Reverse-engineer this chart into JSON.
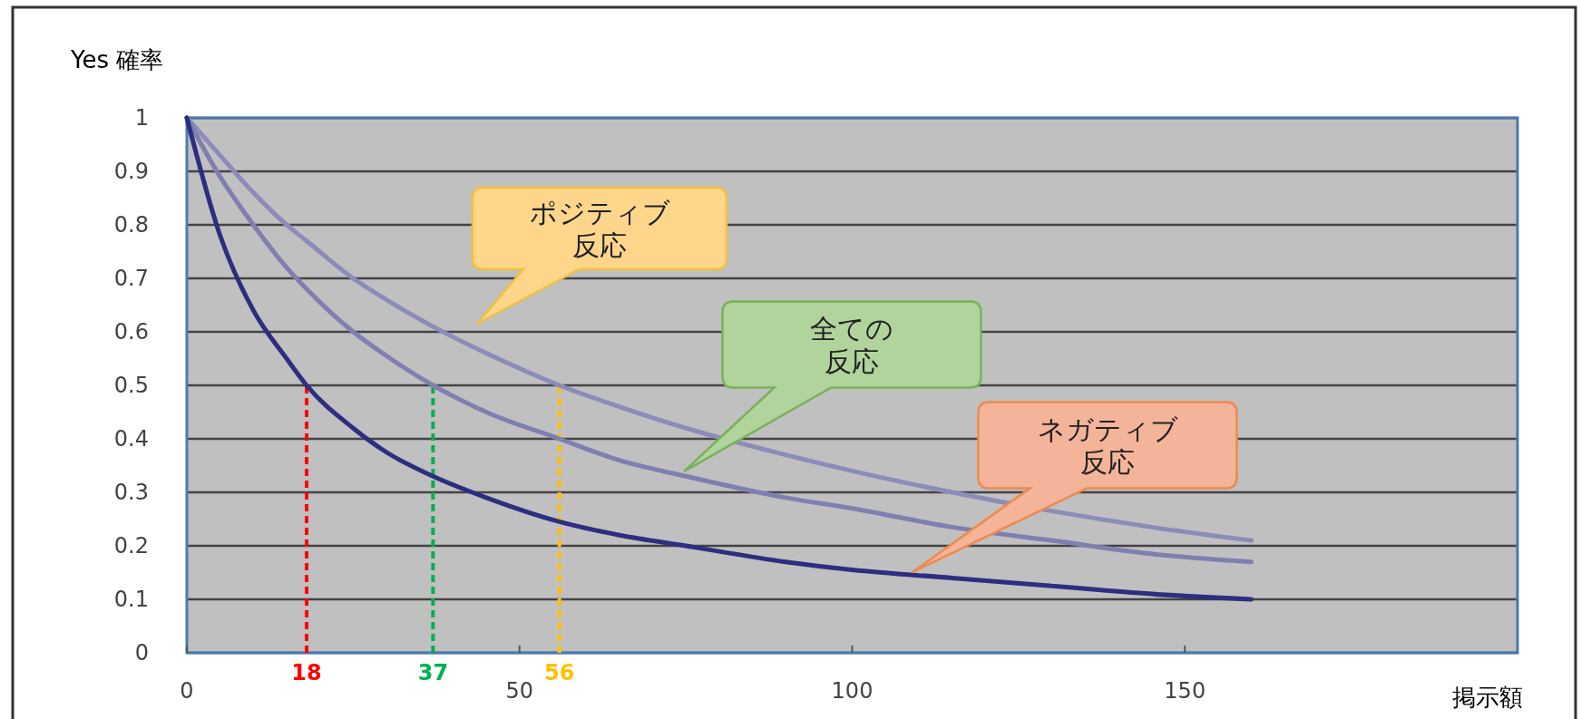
{
  "chart_data": {
    "type": "line",
    "xlabel": "掲示額",
    "ylabel": "Yes 確率",
    "x": [
      0,
      5,
      10,
      15,
      18,
      25,
      30,
      37,
      45,
      56,
      65,
      75,
      90,
      100,
      115,
      130,
      145,
      160
    ],
    "series": [
      {
        "color": "#8c8cb8",
        "values": [
          1,
          0.93,
          0.86,
          0.8,
          0.77,
          0.7,
          0.66,
          0.61,
          0.56,
          0.5,
          0.46,
          0.42,
          0.37,
          0.34,
          0.3,
          0.265,
          0.235,
          0.21
        ]
      },
      {
        "color": "#7f7fb0",
        "values": [
          1,
          0.89,
          0.8,
          0.72,
          0.68,
          0.6,
          0.555,
          0.5,
          0.45,
          0.4,
          0.36,
          0.33,
          0.29,
          0.27,
          0.235,
          0.21,
          0.185,
          0.17
        ]
      },
      {
        "color": "#2e2e80",
        "values": [
          1,
          0.78,
          0.64,
          0.55,
          0.5,
          0.42,
          0.375,
          0.33,
          0.29,
          0.245,
          0.22,
          0.2,
          0.17,
          0.155,
          0.14,
          0.125,
          0.11,
          0.1
        ]
      }
    ],
    "xlim": [
      0,
      200
    ],
    "xticks": [
      0,
      50,
      100,
      150
    ],
    "ylim": [
      0,
      1
    ],
    "yticks": [
      0,
      0.1,
      0.2,
      0.3,
      0.4,
      0.5,
      0.6,
      0.7,
      0.8,
      0.9,
      1
    ],
    "grid": "y",
    "line_style": "solid",
    "ref_lines": [
      {
        "axis": "x",
        "value": 18,
        "label": "18",
        "color": "#ff0000",
        "line_style": "dashed"
      },
      {
        "axis": "x",
        "value": 37,
        "label": "37",
        "color": "#00b050",
        "line_style": "dashed"
      },
      {
        "axis": "x",
        "value": 56,
        "label": "56",
        "color": "#ffc000",
        "line_style": "dashed"
      }
    ],
    "annotations": [
      "ポジティブ反応",
      "全ての反応",
      "ネガティブ反応"
    ]
  }
}
